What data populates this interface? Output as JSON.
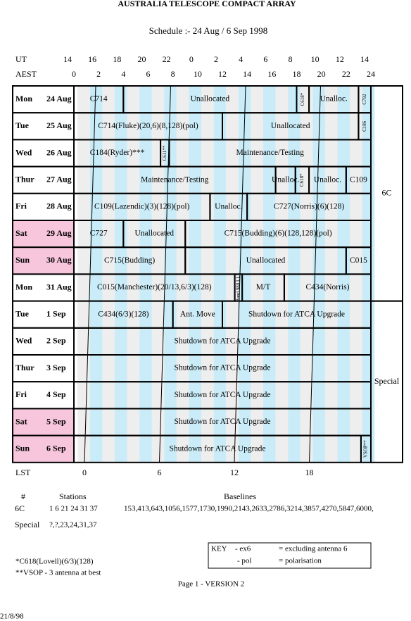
{
  "header": {
    "title": "AUSTRALIA TELESCOPE COMPACT ARRAY",
    "subtitle": "Schedule :- 24 Aug / 6 Sep 1998",
    "ut_label": "UT",
    "aest_label": "AEST",
    "ut": [
      14,
      16,
      18,
      20,
      22,
      0,
      2,
      4,
      6,
      8,
      10,
      12,
      14
    ],
    "aest": [
      0,
      2,
      4,
      6,
      8,
      10,
      12,
      14,
      16,
      18,
      20,
      22,
      24
    ]
  },
  "rows": [
    {
      "day": "Mon",
      "date": "24 Aug",
      "weekend": false,
      "blocks": [
        {
          "label": "C714",
          "start": 0,
          "end": 4
        },
        {
          "label": "Unallocated",
          "start": 4,
          "end": 18
        },
        {
          "label": "C618*",
          "start": 18,
          "end": 19
        },
        {
          "label": "Unalloc.",
          "start": 19,
          "end": 23
        },
        {
          "label": "C792",
          "start": 23,
          "end": 24
        }
      ]
    },
    {
      "day": "Tue",
      "date": "25 Aug",
      "weekend": false,
      "blocks": [
        {
          "label": "C714(Fluke)(20,6)(8,128)(pol)",
          "start": 0,
          "end": 12
        },
        {
          "label": "Unallocated",
          "start": 12,
          "end": 23
        },
        {
          "label": "C186",
          "start": 23,
          "end": 24
        }
      ]
    },
    {
      "day": "Wed",
      "date": "26 Aug",
      "weekend": false,
      "blocks": [
        {
          "label": "C184(Ryder)***",
          "start": 0,
          "end": 7
        },
        {
          "label": "C611**",
          "start": 7,
          "end": 7.7
        },
        {
          "label": "Maintenance/Testing",
          "start": 7.7,
          "end": 24
        }
      ]
    },
    {
      "day": "Thur",
      "date": "27 Aug",
      "weekend": false,
      "blocks": [
        {
          "label": "Maintenance/Testing",
          "start": 0,
          "end": 16.3
        },
        {
          "label": "Unalloc.",
          "start": 16.3,
          "end": 17.9
        },
        {
          "label": "C618*",
          "start": 17.9,
          "end": 19
        },
        {
          "label": "Unalloc.",
          "start": 19,
          "end": 22
        },
        {
          "label": "C109",
          "start": 22,
          "end": 24
        }
      ]
    },
    {
      "day": "Fri",
      "date": "28 Aug",
      "weekend": false,
      "blocks": [
        {
          "label": "C109(Lazendic)(3)(128)(pol)",
          "start": 0,
          "end": 11
        },
        {
          "label": "Unalloc.",
          "start": 11,
          "end": 14
        },
        {
          "label": "C727(Norris)(6)(128)",
          "start": 14,
          "end": 24
        }
      ]
    },
    {
      "day": "Sat",
      "date": "29 Aug",
      "weekend": true,
      "blocks": [
        {
          "label": "C727",
          "start": 0,
          "end": 4
        },
        {
          "label": "Unallocated",
          "start": 4,
          "end": 9
        },
        {
          "label": "C715(Budding)(6)(128,128)(pol)",
          "start": 9,
          "end": 24
        }
      ]
    },
    {
      "day": "Sun",
      "date": "30 Aug",
      "weekend": true,
      "blocks": [
        {
          "label": "C715(Budding)",
          "start": 0,
          "end": 9
        },
        {
          "label": "Unallocated",
          "start": 9,
          "end": 22
        },
        {
          "label": "C015",
          "start": 22,
          "end": 24
        }
      ]
    },
    {
      "day": "Mon",
      "date": "31 Aug",
      "weekend": false,
      "blocks": [
        {
          "label": "C015(Manchester)(20/13,6/3)(128)",
          "start": 0,
          "end": 13
        },
        {
          "label": "Band 980 LL?",
          "start": 13,
          "end": 13.6
        },
        {
          "label": "M/T",
          "start": 13.6,
          "end": 17
        },
        {
          "label": "C434(Norris)",
          "start": 17,
          "end": 24
        }
      ]
    },
    {
      "day": "Tue",
      "date": "1 Sep",
      "weekend": false,
      "blocks": [
        {
          "label": "C434(6/3)(128)",
          "start": 0,
          "end": 8
        },
        {
          "label": "Ant. Move",
          "start": 8,
          "end": 12
        },
        {
          "label": "Shutdown for ATCA Upgrade",
          "start": 12,
          "end": 24
        }
      ]
    },
    {
      "day": "Wed",
      "date": "2 Sep",
      "weekend": false,
      "blocks": [
        {
          "label": "Shutdown for ATCA Upgrade",
          "start": 0,
          "end": 24
        }
      ]
    },
    {
      "day": "Thur",
      "date": "3 Sep",
      "weekend": false,
      "blocks": [
        {
          "label": "Shutdown for ATCA Upgrade",
          "start": 0,
          "end": 24
        }
      ]
    },
    {
      "day": "Fri",
      "date": "4 Sep",
      "weekend": false,
      "blocks": [
        {
          "label": "Shutdown for ATCA Upgrade",
          "start": 0,
          "end": 24
        }
      ]
    },
    {
      "day": "Sat",
      "date": "5 Sep",
      "weekend": true,
      "blocks": [
        {
          "label": "Shutdown for ATCA Upgrade",
          "start": 0,
          "end": 24
        }
      ]
    },
    {
      "day": "Sun",
      "date": "6 Sep",
      "weekend": true,
      "blocks": [
        {
          "label": "Shutdown for ATCA Upgrade",
          "start": 0,
          "end": 23.2
        },
        {
          "label": "VSOP**",
          "start": 23.2,
          "end": 24
        }
      ]
    }
  ],
  "configs": [
    {
      "label": "6C",
      "first_row": 0,
      "last_row": 7
    },
    {
      "label": "Special",
      "first_row": 8,
      "last_row": 13
    }
  ],
  "lst": {
    "label": "LST",
    "values": [
      0,
      6,
      12,
      18
    ]
  },
  "stations": {
    "col_hash": "#",
    "col_stations": "Stations",
    "col_baselines": "Baselines",
    "rows": [
      {
        "config": "6C",
        "stations": "1 6 21 24 31 37",
        "baselines": "153,413,643,1056,1577,1730,1990,2143,2633,2786,3214,3857,4270,5847,6000,"
      },
      {
        "config": "Special",
        "stations": "?,?,23,24,31,37",
        "baselines": ""
      }
    ]
  },
  "key": {
    "title": "KEY",
    "items": [
      {
        "code": "- ex6",
        "meaning": "= excluding antenna 6"
      },
      {
        "code": "- pol",
        "meaning": "= polarisation"
      }
    ]
  },
  "footnotes": [
    "*C618(Lovell)(6/3)(128)",
    "**VSOP - 3 antenna at best"
  ],
  "footer": {
    "page": "Page 1 - VERSION 2",
    "date": "21/8/98"
  }
}
